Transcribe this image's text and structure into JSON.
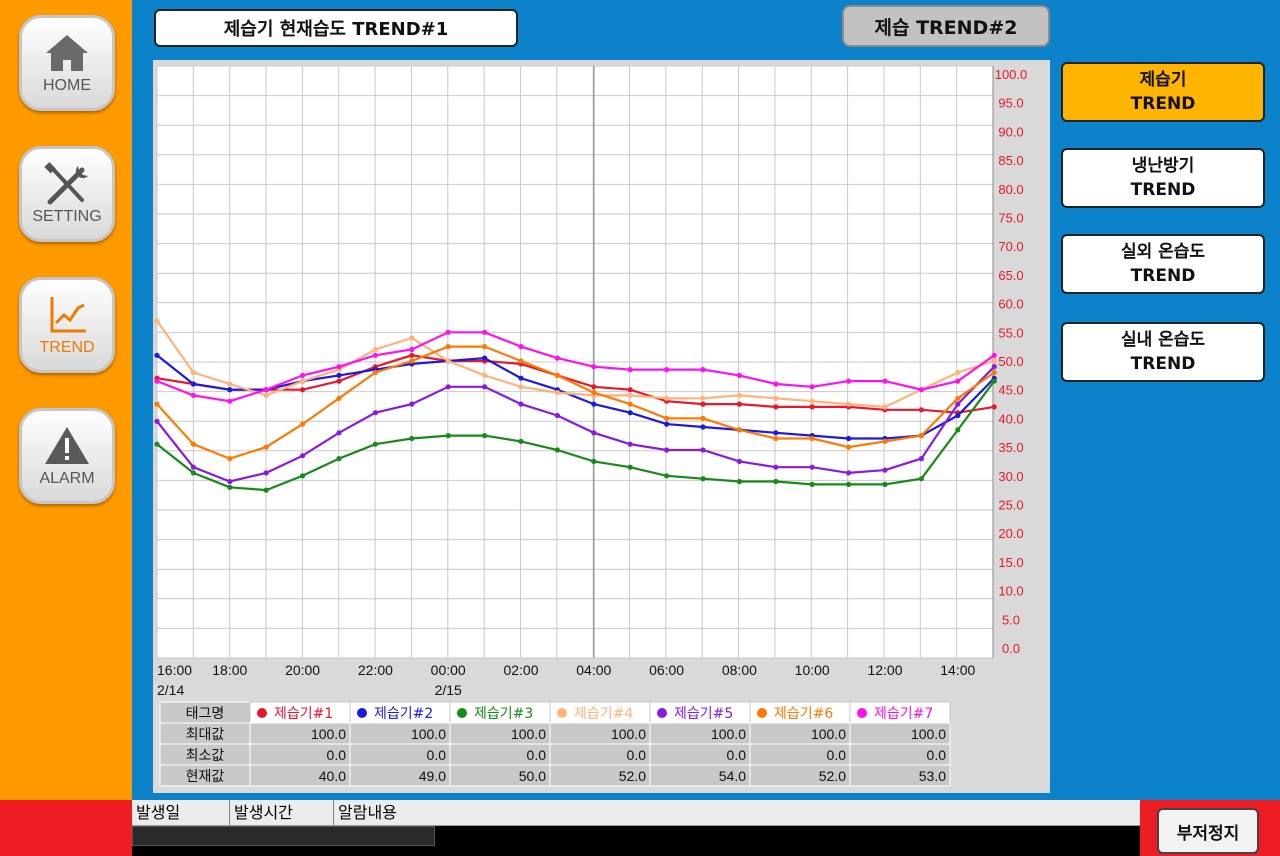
{
  "leftnav": {
    "items": [
      {
        "label": "HOME",
        "icon": "home-icon"
      },
      {
        "label": "SETTING",
        "icon": "wrench-screwdriver-icon"
      },
      {
        "label": "TREND",
        "icon": "trend-chart-icon",
        "active": true
      },
      {
        "label": "ALARM",
        "icon": "warning-triangle-icon"
      }
    ]
  },
  "header": {
    "title": "제습기 현재습도 TREND#1",
    "trend2_label": "제습 TREND#2"
  },
  "rightnav": {
    "items": [
      {
        "line1": "제습기",
        "line2": "TREND",
        "active": true
      },
      {
        "line1": "냉난방기",
        "line2": "TREND"
      },
      {
        "line1": "실외 온습도",
        "line2": "TREND"
      },
      {
        "line1": "실내 온습도",
        "line2": "TREND"
      }
    ]
  },
  "chart_data": {
    "type": "line",
    "y_ticks": [
      "100.0",
      "95.0",
      "90.0",
      "85.0",
      "80.0",
      "75.0",
      "70.0",
      "65.0",
      "60.0",
      "55.0",
      "50.0",
      "45.0",
      "40.0",
      "35.0",
      "30.0",
      "25.0",
      "20.0",
      "15.0",
      "10.0",
      "5.0",
      "0.0"
    ],
    "ylim": [
      0,
      100
    ],
    "x_hours": [
      0,
      28
    ],
    "x_ticks": [
      {
        "label": "16:00",
        "h": 0,
        "date": "2/14"
      },
      {
        "label": "18:00",
        "h": 2
      },
      {
        "label": "20:00",
        "h": 4
      },
      {
        "label": "22:00",
        "h": 6
      },
      {
        "label": "00:00",
        "h": 8,
        "date": "2/15"
      },
      {
        "label": "02:00",
        "h": 10
      },
      {
        "label": "04:00",
        "h": 12
      },
      {
        "label": "06:00",
        "h": 14
      },
      {
        "label": "08:00",
        "h": 16
      },
      {
        "label": "10:00",
        "h": 18
      },
      {
        "label": "12:00",
        "h": 20
      },
      {
        "label": "14:00",
        "h": 22
      }
    ],
    "x_times": [
      0,
      1,
      2,
      3,
      4,
      5,
      6,
      7,
      8,
      9,
      10,
      11,
      12,
      13,
      14,
      15,
      16,
      17,
      18,
      19,
      20,
      21,
      22,
      23
    ],
    "grid": true,
    "series": [
      {
        "name": "제습기#1",
        "color": "#e8182c",
        "values": [
          47,
          46,
          45,
          45,
          45,
          46.5,
          49,
          51,
          50,
          50,
          49.5,
          47.5,
          45.5,
          45,
          43,
          42.5,
          42.5,
          42,
          42,
          42,
          41.5,
          41.5,
          41,
          42
        ]
      },
      {
        "name": "제습기#2",
        "color": "#1a1ae0",
        "values": [
          51,
          46,
          45,
          45,
          46.5,
          47.5,
          48.5,
          49.5,
          50,
          50.5,
          47,
          45,
          42.5,
          41,
          39,
          38.5,
          38,
          37.5,
          37,
          36.5,
          36.5,
          37,
          40.5,
          47
        ]
      },
      {
        "name": "제습기#3",
        "color": "#178a17",
        "values": [
          35.5,
          30.5,
          28,
          27.5,
          30,
          33,
          35.5,
          36.5,
          37,
          37,
          36,
          34.5,
          32.5,
          31.5,
          30,
          29.5,
          29,
          29,
          28.5,
          28.5,
          28.5,
          29.5,
          38,
          46.5
        ]
      },
      {
        "name": "제습기#4",
        "color": "#ffb27a",
        "values": [
          57,
          48,
          46,
          44,
          46.5,
          48.5,
          52,
          54,
          50,
          47.5,
          45.5,
          44.5,
          44,
          44,
          43.5,
          43.5,
          44,
          43.5,
          43,
          42.5,
          42,
          45,
          48,
          50
        ]
      },
      {
        "name": "제습기#5",
        "color": "#8a1ae0",
        "values": [
          39.5,
          31.5,
          29,
          30.5,
          33.5,
          37.5,
          41,
          42.5,
          45.5,
          45.5,
          42.5,
          40.5,
          37.5,
          35.5,
          34.5,
          34.5,
          32.5,
          31.5,
          31.5,
          30.5,
          31,
          33,
          42.5,
          49
        ]
      },
      {
        "name": "제습기#6",
        "color": "#ff7a00",
        "values": [
          42.5,
          35.5,
          33,
          35,
          39,
          43.5,
          48,
          50,
          52.5,
          52.5,
          50,
          47.5,
          44.5,
          42.5,
          40,
          40,
          38,
          36.5,
          36.5,
          35,
          36,
          37,
          43.5,
          48
        ]
      },
      {
        "name": "제습기#7",
        "color": "#ff10f0",
        "values": [
          46.5,
          44,
          43,
          45,
          47.5,
          49,
          51,
          52,
          55,
          55,
          52.5,
          50.5,
          49,
          48.5,
          48.5,
          48.5,
          47.5,
          46,
          45.5,
          46.5,
          46.5,
          45,
          46.5,
          51
        ]
      }
    ]
  },
  "legend": {
    "header_label": "태그명",
    "row_labels": [
      "최대값",
      "최소값",
      "현재값"
    ],
    "entries": [
      {
        "name": "제습기#1",
        "color": "#e8182c",
        "max": "100.0",
        "min": "0.0",
        "current": "40.0"
      },
      {
        "name": "제습기#2",
        "color": "#1a1ae0",
        "max": "100.0",
        "min": "0.0",
        "current": "49.0"
      },
      {
        "name": "제습기#3",
        "color": "#178a17",
        "max": "100.0",
        "min": "0.0",
        "current": "50.0"
      },
      {
        "name": "제습기#4",
        "color": "#ffb27a",
        "max": "100.0",
        "min": "0.0",
        "current": "52.0"
      },
      {
        "name": "제습기#5",
        "color": "#8a1ae0",
        "max": "100.0",
        "min": "0.0",
        "current": "54.0"
      },
      {
        "name": "제습기#6",
        "color": "#ff7a00",
        "max": "100.0",
        "min": "0.0",
        "current": "52.0"
      },
      {
        "name": "제습기#7",
        "color": "#ff10f0",
        "max": "100.0",
        "min": "0.0",
        "current": "53.0"
      }
    ]
  },
  "alarm": {
    "columns": [
      "발생일",
      "발생시간",
      "알람내용"
    ]
  },
  "buzzer_label": "부저정지"
}
